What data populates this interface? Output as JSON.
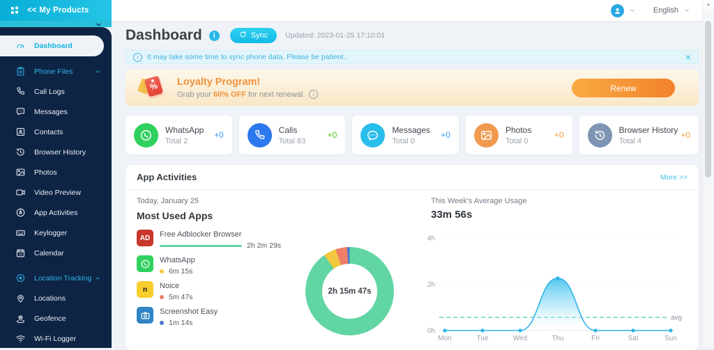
{
  "topbar": {
    "products_label": "<< My Products",
    "language": "English"
  },
  "sidebar": {
    "items": [
      {
        "label": "Dashboard",
        "icon": "dashboard-icon",
        "kind": "active"
      },
      {
        "label": "Phone Files",
        "icon": "clipboard-icon",
        "kind": "section"
      },
      {
        "label": "Call Logs",
        "icon": "phone-icon",
        "kind": "item"
      },
      {
        "label": "Messages",
        "icon": "chat-icon",
        "kind": "item"
      },
      {
        "label": "Contacts",
        "icon": "contact-icon",
        "kind": "item"
      },
      {
        "label": "Browser History",
        "icon": "history-icon",
        "kind": "item"
      },
      {
        "label": "Photos",
        "icon": "photo-icon",
        "kind": "item"
      },
      {
        "label": "Video Preview",
        "icon": "video-icon",
        "kind": "item"
      },
      {
        "label": "App Activities",
        "icon": "compass-icon",
        "kind": "item"
      },
      {
        "label": "Keylogger",
        "icon": "keyboard-icon",
        "kind": "item"
      },
      {
        "label": "Calendar",
        "icon": "calendar-icon",
        "kind": "item"
      },
      {
        "label": "Location Tracking",
        "icon": "target-icon",
        "kind": "section"
      },
      {
        "label": "Locations",
        "icon": "pin-icon",
        "kind": "item"
      },
      {
        "label": "Geofence",
        "icon": "geofence-icon",
        "kind": "item"
      },
      {
        "label": "Wi-Fi Logger",
        "icon": "wifi-icon",
        "kind": "item"
      }
    ]
  },
  "header": {
    "title": "Dashboard",
    "sync_label": "Sync",
    "updated": "Updated: 2023-01-25 17:10:01"
  },
  "notice": {
    "text": "It may take some time to sync phone data. Please be patient.."
  },
  "loyalty": {
    "title": "Loyalty Program!",
    "sub_prefix": "Grab your",
    "highlight": "60% OFF",
    "sub_suffix": "for next renewal.",
    "button_label": "Renew"
  },
  "cards": [
    {
      "name": "WhatsApp",
      "total": "Total 2",
      "delta": "+0",
      "icon": "whatsapp-icon",
      "icon_bg": "#31d15f",
      "delta_color": "#3b9cf5"
    },
    {
      "name": "Calls",
      "total": "Total 83",
      "delta": "+0",
      "icon": "phone-icon",
      "icon_bg": "#2c78ee",
      "delta_color": "#52c41a"
    },
    {
      "name": "Messages",
      "total": "Total 0",
      "delta": "+0",
      "icon": "chat-dots-icon",
      "icon_bg": "#29bdeb",
      "delta_color": "#3b9cf5"
    },
    {
      "name": "Photos",
      "total": "Total 0",
      "delta": "+0",
      "icon": "photo-icon",
      "icon_bg": "#ef9a4f",
      "delta_color": "#f5a03c"
    },
    {
      "name": "Browser History",
      "total": "Total 4",
      "delta": "+0",
      "icon": "history-icon",
      "icon_bg": "#7e95b3",
      "delta_color": "#f5a03c"
    }
  ],
  "app_activities": {
    "title": "App Activities",
    "more_label": "More >>",
    "today_label": "Today, January 25",
    "most_used_title": "Most Used Apps",
    "apps": [
      {
        "name": "Free Adblocker Browser",
        "duration": "2h 2m 29s",
        "color": "#62d5a4",
        "icon": "adblock-icon",
        "icon_text": "AD",
        "icon_bg": "#c9372c",
        "icon_fg": "#ffffff",
        "bar": true
      },
      {
        "name": "WhatsApp",
        "duration": "6m 15s",
        "color": "#f2c83e",
        "icon": "whatsapp-icon",
        "icon_bg": "#31d15f",
        "icon_fg": "#ffffff"
      },
      {
        "name": "Noice",
        "duration": "5m 47s",
        "color": "#ee7e68",
        "icon": "noice-icon",
        "icon_text": "n",
        "icon_bg": "#f7ce2e",
        "icon_fg": "#141414"
      },
      {
        "name": "Screenshot Easy",
        "duration": "1m 14s",
        "color": "#4a77c9",
        "icon": "camera-icon",
        "icon_bg": "#2e84c4",
        "icon_fg": "#ffffff"
      }
    ],
    "donut_center": "2h 15m 47s",
    "week_label": "This Week's Average Usage",
    "week_value": "33m 56s"
  },
  "chart_data": [
    {
      "type": "pie",
      "title": "Most Used Apps (Today, January 25)",
      "labels": [
        "Free Adblocker Browser",
        "WhatsApp",
        "Noice",
        "Screenshot Easy"
      ],
      "duration_labels": [
        "2h 2m 29s",
        "6m 15s",
        "5m 47s",
        "1m 14s"
      ],
      "values_seconds": [
        7349,
        375,
        347,
        74
      ],
      "colors": [
        "#62d5a4",
        "#f2c83e",
        "#ee7e68",
        "#4a77c9"
      ],
      "center_label": "2h 15m 47s",
      "donut": true
    },
    {
      "type": "area",
      "title": "This Week's Average Usage",
      "x": [
        "Mon",
        "Tue",
        "Wed",
        "Thu",
        "Fri",
        "Sat",
        "Sun"
      ],
      "values_hours": [
        0,
        0,
        0,
        2.263,
        0,
        0,
        0
      ],
      "ylim": [
        0,
        4
      ],
      "yticks": [
        "0h",
        "2h",
        "4h"
      ],
      "ytick_values": [
        0,
        2,
        4
      ],
      "avg_hours": 0.566,
      "avg_label": "avg",
      "average_value_label": "33m 56s",
      "line_color": "#2fb3e8",
      "avg_color": "#74d4c4",
      "grid": true,
      "legend": false
    }
  ]
}
